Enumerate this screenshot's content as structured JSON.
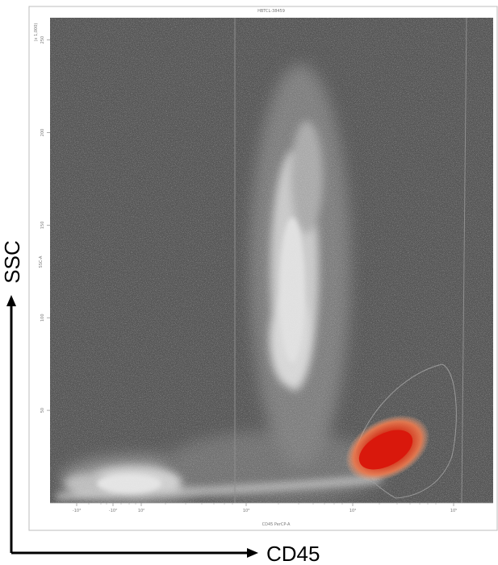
{
  "chart_data": {
    "type": "scatter",
    "title": "HBTCL-38459",
    "xlabel": "CD45 PerCP-A",
    "ylabel": "SSC-A",
    "outer_xlabel": "CD45",
    "outer_ylabel": "SSC",
    "x_scale": "biexponential",
    "x_ticks": [
      "-10³",
      "-10²",
      "10²",
      "10³",
      "10⁴",
      "10⁵"
    ],
    "y_ticks": [
      "50",
      "100",
      "150",
      "200",
      "250"
    ],
    "y_top_label": "(x 1,000)",
    "ylim": [
      0,
      262
    ],
    "grid": false,
    "populations": [
      {
        "name": "debris",
        "color": "#dddddd",
        "x_center": 0.2,
        "y_center": 20
      },
      {
        "name": "granulocytes",
        "color": "#dddddd",
        "x_center": 3.2,
        "y_center": 140
      },
      {
        "name": "lymphocytes",
        "color": "#dc2c14",
        "x_center": 4.35,
        "y_center": 36
      }
    ],
    "colors": {
      "background": "#555555",
      "events": "#dddddd",
      "highlight": "#dc2c14",
      "gate": "#909090"
    }
  }
}
